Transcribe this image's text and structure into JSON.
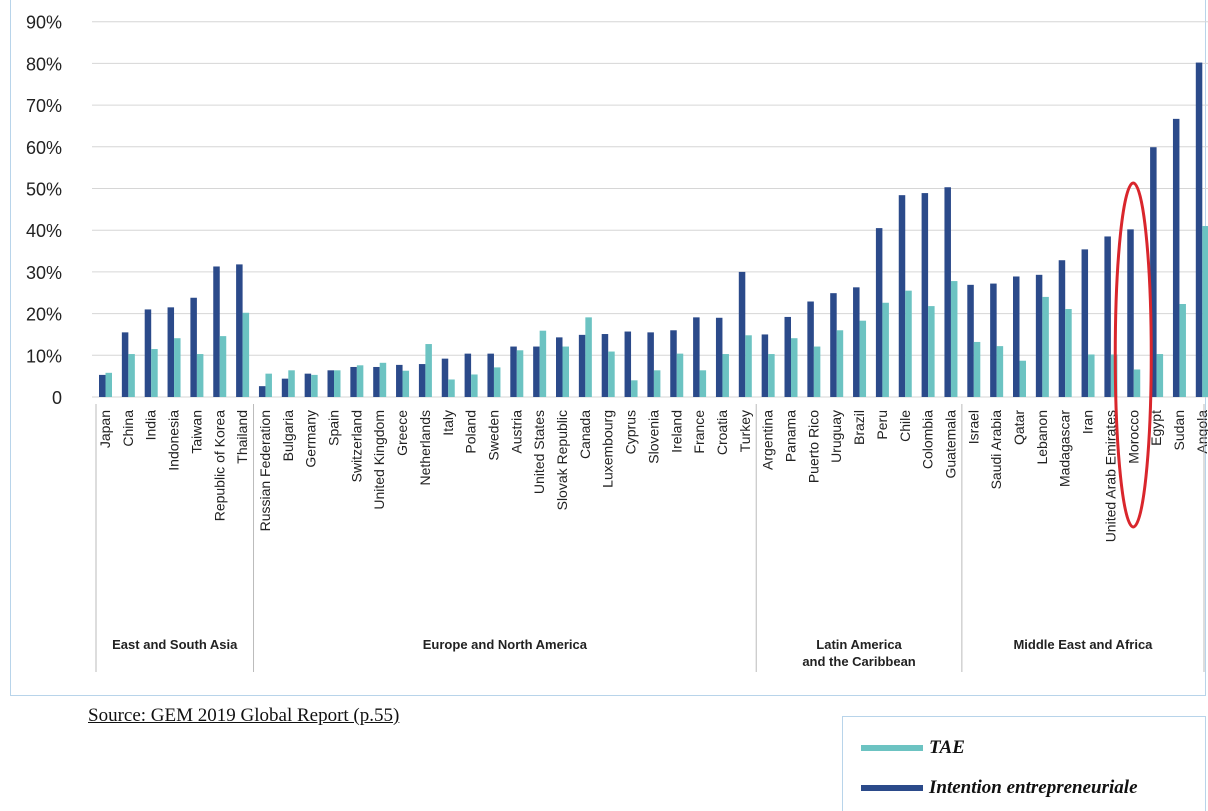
{
  "chart_data": {
    "type": "bar",
    "ylim": [
      0,
      90
    ],
    "yticks": [
      "0",
      "10%",
      "20%",
      "30%",
      "40%",
      "50%",
      "60%",
      "70%",
      "80%",
      "90%"
    ],
    "grid": true,
    "categories": [
      "Japan",
      "China",
      "India",
      "Indonesia",
      "Taiwan",
      "Republic of Korea",
      "Thailand",
      "Russian Federation",
      "Bulgaria",
      "Germany",
      "Spain",
      "Switzerland",
      "United Kingdom",
      "Greece",
      "Netherlands",
      "Italy",
      "Poland",
      "Sweden",
      "Austria",
      "United States",
      "Slovak Republic",
      "Canada",
      "Luxembourg",
      "Cyprus",
      "Slovenia",
      "Ireland",
      "France",
      "Croatia",
      "Turkey",
      "Argentina",
      "Panama",
      "Puerto Rico",
      "Uruguay",
      "Brazil",
      "Peru",
      "Chile",
      "Colombia",
      "Guatemala",
      "Israel",
      "Saudi Arabia",
      "Qatar",
      "Lebanon",
      "Madagascar",
      "Iran",
      "United Arab Emirates",
      "Morocco",
      "Egypt",
      "Sudan",
      "Angola"
    ],
    "series": [
      {
        "name": "Intention entrepreneuriale",
        "color": "#2b4a8a",
        "values": [
          5.3,
          15.5,
          21,
          21.5,
          23.8,
          31.3,
          31.8,
          2.6,
          4.4,
          5.6,
          6.4,
          7.2,
          7.2,
          7.7,
          7.9,
          9.2,
          10.4,
          10.4,
          12.1,
          12.1,
          14.3,
          14.9,
          15.1,
          15.7,
          15.5,
          16.0,
          19.1,
          19.0,
          30.0,
          15.0,
          19.2,
          22.9,
          24.9,
          26.3,
          40.5,
          48.4,
          48.9,
          50.3,
          26.9,
          27.2,
          28.9,
          29.3,
          32.8,
          35.4,
          38.5,
          40.2,
          59.9,
          66.7,
          80.2
        ]
      },
      {
        "name": "TAE",
        "color": "#6cc3c2",
        "values": [
          5.8,
          10.3,
          11.5,
          14.1,
          10.3,
          14.6,
          20.2,
          5.6,
          6.4,
          5.3,
          6.4,
          7.6,
          8.2,
          6.3,
          12.7,
          4.2,
          5.4,
          7.1,
          11.2,
          15.9,
          12.1,
          19.1,
          10.9,
          4.0,
          6.4,
          10.4,
          6.4,
          10.3,
          14.8,
          10.3,
          14.1,
          12.1,
          16.0,
          18.3,
          22.6,
          25.5,
          21.8,
          27.8,
          13.2,
          12.2,
          8.7,
          24.0,
          21.1,
          10.2,
          10.2,
          6.6,
          10.3,
          22.3,
          41.0
        ]
      }
    ],
    "regions": [
      {
        "label": "East and South Asia",
        "start": 0,
        "end": 6
      },
      {
        "label": "Europe and North America",
        "start": 7,
        "end": 28
      },
      {
        "label": "Latin America and the Caribbean",
        "lines": [
          "Latin America",
          "and the Caribbean"
        ],
        "start": 29,
        "end": 37
      },
      {
        "label": "Middle East and Africa",
        "start": 38,
        "end": 48
      }
    ],
    "highlight": {
      "category": "Morocco",
      "shape": "ellipse",
      "color": "#d9262c"
    }
  },
  "source": "Source: GEM 2019 Global Report (p.55)",
  "legend": [
    {
      "label": "TAE",
      "color": "#6cc3c2"
    },
    {
      "label": "Intention entrepreneuriale",
      "color": "#2b4a8a"
    }
  ]
}
